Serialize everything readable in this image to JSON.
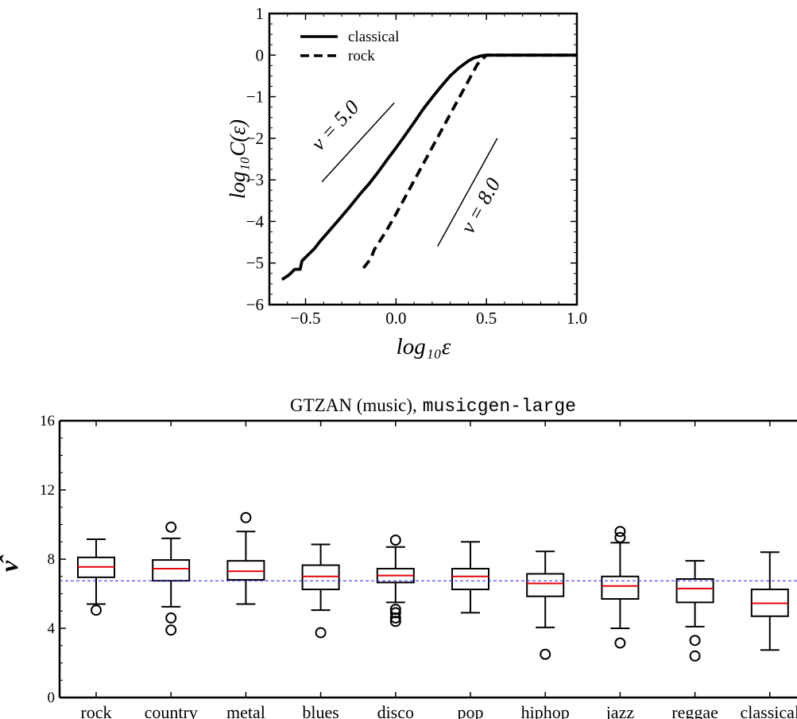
{
  "chart_data": [
    {
      "type": "line",
      "xlabel": "log₁₀ε",
      "ylabel": "log₁₀C(ε)",
      "xlim": [
        -0.7,
        1.0
      ],
      "ylim": [
        -6,
        1
      ],
      "xticks": [
        -0.5,
        0.0,
        0.5,
        1.0
      ],
      "xtick_labels": [
        "−0.5",
        "0.0",
        "0.5",
        "1.0"
      ],
      "yticks": [
        1,
        0,
        -1,
        -2,
        -3,
        -4,
        -5,
        -6
      ],
      "ytick_labels": [
        "1",
        "0",
        "−1",
        "−2",
        "−3",
        "−4",
        "−5",
        "−6"
      ],
      "legend_position": "top-left",
      "series": [
        {
          "name": "classical",
          "style": "solid",
          "x": [
            -0.63,
            -0.59,
            -0.56,
            -0.53,
            -0.52,
            -0.49,
            -0.45,
            -0.42,
            -0.38,
            -0.32,
            -0.25,
            -0.2,
            -0.15,
            -0.1,
            -0.05,
            0.0,
            0.05,
            0.1,
            0.15,
            0.2,
            0.25,
            0.3,
            0.35,
            0.4,
            0.43,
            0.46,
            0.48,
            0.5,
            0.6,
            0.7,
            0.8,
            0.9,
            1.0
          ],
          "y": [
            -5.4,
            -5.28,
            -5.15,
            -5.15,
            -4.95,
            -4.82,
            -4.65,
            -4.48,
            -4.28,
            -3.98,
            -3.62,
            -3.35,
            -3.1,
            -2.82,
            -2.52,
            -2.23,
            -1.93,
            -1.62,
            -1.3,
            -1.02,
            -0.75,
            -0.5,
            -0.3,
            -0.14,
            -0.07,
            -0.03,
            -0.01,
            0.0,
            0.0,
            0.0,
            0.0,
            0.0,
            0.0
          ]
        },
        {
          "name": "rock",
          "style": "dashed",
          "x": [
            -0.18,
            -0.14,
            -0.12,
            -0.05,
            0.0,
            0.05,
            0.1,
            0.15,
            0.2,
            0.25,
            0.3,
            0.35,
            0.4,
            0.45,
            0.5,
            0.6,
            0.7,
            0.8,
            0.9,
            1.0
          ],
          "y": [
            -5.12,
            -4.9,
            -4.68,
            -4.2,
            -3.82,
            -3.42,
            -3.02,
            -2.62,
            -2.22,
            -1.82,
            -1.42,
            -1.02,
            -0.62,
            -0.22,
            0.0,
            0.0,
            0.0,
            0.0,
            0.0,
            0.0
          ]
        }
      ],
      "annotations": [
        {
          "text": "ν = 5.0",
          "slope": 5.0,
          "line": {
            "x": [
              -0.41,
              -0.01
            ],
            "y": [
              -3.05,
              -1.15
            ]
          },
          "label_at": {
            "x": -0.31,
            "y": -1.8
          }
        },
        {
          "text": "ν = 8.0",
          "slope": 8.0,
          "line": {
            "x": [
              0.23,
              0.56
            ],
            "y": [
              -4.6,
              -2.0
            ]
          },
          "label_at": {
            "x": 0.5,
            "y": -3.7
          }
        }
      ]
    },
    {
      "type": "box",
      "title": "GTZAN (music),",
      "title_code": "musicgen-large",
      "ylabel": "ν̂",
      "ylim": [
        0,
        16
      ],
      "yticks": [
        0,
        4,
        8,
        12,
        16
      ],
      "reference_line": 6.75,
      "categories": [
        "rock",
        "country",
        "metal",
        "blues",
        "disco",
        "pop",
        "hiphop",
        "jazz",
        "reggae",
        "classical"
      ],
      "boxes": [
        {
          "whisker_low": 5.4,
          "q1": 6.95,
          "median": 7.55,
          "q3": 8.1,
          "whisker_high": 9.15,
          "outliers": [
            5.05
          ]
        },
        {
          "whisker_low": 5.25,
          "q1": 6.75,
          "median": 7.45,
          "q3": 7.95,
          "whisker_high": 9.2,
          "outliers": [
            9.85,
            4.6,
            3.9
          ]
        },
        {
          "whisker_low": 5.4,
          "q1": 6.8,
          "median": 7.3,
          "q3": 7.9,
          "whisker_high": 9.6,
          "outliers": [
            10.4
          ]
        },
        {
          "whisker_low": 5.05,
          "q1": 6.25,
          "median": 7.0,
          "q3": 7.65,
          "whisker_high": 8.85,
          "outliers": [
            3.75
          ]
        },
        {
          "whisker_low": 5.5,
          "q1": 6.65,
          "median": 7.05,
          "q3": 7.45,
          "whisker_high": 8.7,
          "outliers": [
            9.1,
            5.1,
            4.9,
            4.6,
            4.4
          ]
        },
        {
          "whisker_low": 4.9,
          "q1": 6.25,
          "median": 7.0,
          "q3": 7.45,
          "whisker_high": 9.0,
          "outliers": []
        },
        {
          "whisker_low": 4.05,
          "q1": 5.85,
          "median": 6.6,
          "q3": 7.15,
          "whisker_high": 8.45,
          "outliers": [
            2.5
          ]
        },
        {
          "whisker_low": 4.0,
          "q1": 5.7,
          "median": 6.45,
          "q3": 7.0,
          "whisker_high": 8.95,
          "outliers": [
            9.6,
            9.25,
            3.15
          ]
        },
        {
          "whisker_low": 4.1,
          "q1": 5.5,
          "median": 6.3,
          "q3": 6.85,
          "whisker_high": 7.9,
          "outliers": [
            3.3,
            2.4
          ]
        },
        {
          "whisker_low": 2.75,
          "q1": 4.7,
          "median": 5.45,
          "q3": 6.25,
          "whisker_high": 8.4,
          "outliers": []
        }
      ],
      "colors": {
        "median": "#e8000b",
        "reference": "#1f1fff"
      }
    }
  ]
}
